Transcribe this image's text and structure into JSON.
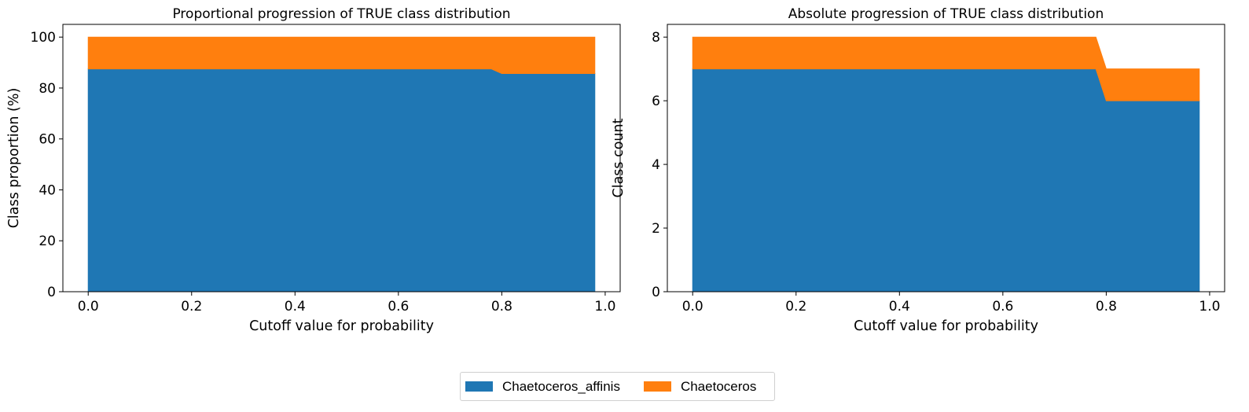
{
  "colors": {
    "series_0": "#1f77b4",
    "series_1": "#ff7f0e"
  },
  "legend": {
    "items": [
      "Chaetoceros_affinis",
      "Chaetoceros"
    ]
  },
  "chart_data": [
    {
      "type": "area",
      "stacked": true,
      "title": "Proportional progression of TRUE class distribution",
      "xlabel": "Cutoff value for probability",
      "ylabel": "Class proportion (%)",
      "xlim": [
        -0.049,
        1.029
      ],
      "ylim": [
        0,
        105
      ],
      "xticks": [
        0.0,
        0.2,
        0.4,
        0.6,
        0.8,
        1.0
      ],
      "xtick_labels": [
        "0.0",
        "0.2",
        "0.4",
        "0.6",
        "0.8",
        "1.0"
      ],
      "yticks": [
        0,
        20,
        40,
        60,
        80,
        100
      ],
      "ytick_labels": [
        "0",
        "20",
        "40",
        "60",
        "80",
        "100"
      ],
      "x": [
        0.0,
        0.78,
        0.8,
        0.98
      ],
      "series": [
        {
          "name": "Chaetoceros_affinis",
          "values": [
            87.5,
            87.5,
            85.7,
            85.7
          ]
        },
        {
          "name": "Chaetoceros",
          "values": [
            12.5,
            12.5,
            14.3,
            14.3
          ]
        }
      ],
      "grid": false,
      "legend": "bottom-center (shared)"
    },
    {
      "type": "area",
      "stacked": true,
      "title": "Absolute progression of TRUE class distribution",
      "xlabel": "Cutoff value for probability",
      "ylabel": "Class count",
      "xlim": [
        -0.049,
        1.029
      ],
      "ylim": [
        0,
        8.4
      ],
      "xticks": [
        0.0,
        0.2,
        0.4,
        0.6,
        0.8,
        1.0
      ],
      "xtick_labels": [
        "0.0",
        "0.2",
        "0.4",
        "0.6",
        "0.8",
        "1.0"
      ],
      "yticks": [
        0,
        2,
        4,
        6,
        8
      ],
      "ytick_labels": [
        "0",
        "2",
        "4",
        "6",
        "8"
      ],
      "x": [
        0.0,
        0.78,
        0.8,
        0.98
      ],
      "series": [
        {
          "name": "Chaetoceros_affinis",
          "values": [
            7,
            7,
            6,
            6
          ]
        },
        {
          "name": "Chaetoceros",
          "values": [
            1,
            1,
            1,
            1
          ]
        }
      ],
      "grid": false,
      "legend": "bottom-center (shared)"
    }
  ]
}
